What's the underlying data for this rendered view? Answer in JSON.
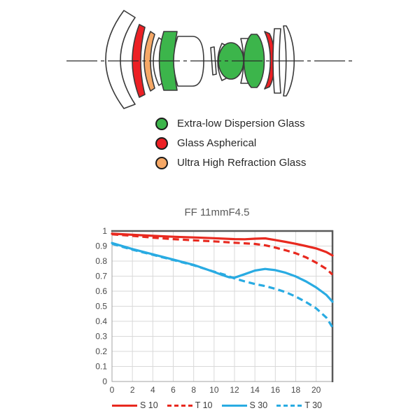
{
  "lens": {
    "colors": {
      "ed_glass": "#3CB54B",
      "aspherical": "#EC2024",
      "uhr_glass": "#F6A866",
      "outline": "#3a3a3a",
      "white_glass": "#ffffff"
    },
    "legend": [
      {
        "label": "Extra-low Dispersion Glass",
        "color": "#3CB54B"
      },
      {
        "label": "Glass Aspherical",
        "color": "#EC2024"
      },
      {
        "label": "Ultra High Refraction Glass",
        "color": "#F6A866"
      }
    ]
  },
  "chart_data": {
    "type": "line",
    "title": "FF 11mmF4.5",
    "xlabel": "",
    "ylabel": "",
    "xlim": [
      0,
      21.6
    ],
    "ylim": [
      0,
      1
    ],
    "x_ticks": [
      0,
      2,
      4,
      6,
      8,
      10,
      12,
      14,
      16,
      18,
      20
    ],
    "y_ticks": [
      "1",
      "0.9",
      "0.8",
      "0.7",
      "0.6",
      "0.5",
      "0.4",
      "0.3",
      "0.2",
      "0.1",
      "0"
    ],
    "grid": true,
    "grid_color": "#d9d9d9",
    "frame_color": "#a3a3a3",
    "dark_border_color": "#595959",
    "legend_position": "bottom",
    "series": [
      {
        "name": "S 10",
        "color": "#E8291F",
        "dash": "solid",
        "points": [
          [
            0,
            0.982
          ],
          [
            2,
            0.975
          ],
          [
            4,
            0.968
          ],
          [
            6,
            0.962
          ],
          [
            8,
            0.957
          ],
          [
            10,
            0.952
          ],
          [
            12,
            0.946
          ],
          [
            13,
            0.945
          ],
          [
            14,
            0.949
          ],
          [
            15,
            0.951
          ],
          [
            16,
            0.94
          ],
          [
            17,
            0.928
          ],
          [
            18,
            0.915
          ],
          [
            19,
            0.9
          ],
          [
            20,
            0.884
          ],
          [
            21,
            0.86
          ],
          [
            21.6,
            0.837
          ]
        ]
      },
      {
        "name": "T 10",
        "color": "#E8291F",
        "dash": "dashed",
        "points": [
          [
            0,
            0.978
          ],
          [
            2,
            0.968
          ],
          [
            4,
            0.956
          ],
          [
            6,
            0.946
          ],
          [
            8,
            0.938
          ],
          [
            10,
            0.931
          ],
          [
            12,
            0.922
          ],
          [
            13,
            0.918
          ],
          [
            14,
            0.914
          ],
          [
            15,
            0.905
          ],
          [
            16,
            0.89
          ],
          [
            17,
            0.872
          ],
          [
            18,
            0.852
          ],
          [
            19,
            0.825
          ],
          [
            20,
            0.79
          ],
          [
            21,
            0.748
          ],
          [
            21.6,
            0.71
          ]
        ]
      },
      {
        "name": "S 30",
        "color": "#29ABE2",
        "dash": "solid",
        "points": [
          [
            0,
            0.92
          ],
          [
            2,
            0.88
          ],
          [
            4,
            0.845
          ],
          [
            6,
            0.81
          ],
          [
            8,
            0.775
          ],
          [
            10,
            0.728
          ],
          [
            11,
            0.703
          ],
          [
            11.5,
            0.692
          ],
          [
            12,
            0.69
          ],
          [
            13,
            0.713
          ],
          [
            14,
            0.737
          ],
          [
            15,
            0.748
          ],
          [
            16,
            0.74
          ],
          [
            17,
            0.723
          ],
          [
            18,
            0.698
          ],
          [
            19,
            0.665
          ],
          [
            20,
            0.625
          ],
          [
            21,
            0.575
          ],
          [
            21.6,
            0.53
          ]
        ]
      },
      {
        "name": "T 30",
        "color": "#29ABE2",
        "dash": "dashed",
        "points": [
          [
            0,
            0.915
          ],
          [
            2,
            0.876
          ],
          [
            4,
            0.842
          ],
          [
            6,
            0.807
          ],
          [
            8,
            0.772
          ],
          [
            10,
            0.73
          ],
          [
            11,
            0.71
          ],
          [
            12,
            0.685
          ],
          [
            13,
            0.665
          ],
          [
            14,
            0.648
          ],
          [
            15,
            0.634
          ],
          [
            16,
            0.616
          ],
          [
            17,
            0.594
          ],
          [
            18,
            0.564
          ],
          [
            19,
            0.528
          ],
          [
            20,
            0.486
          ],
          [
            21,
            0.424
          ],
          [
            21.6,
            0.36
          ]
        ]
      }
    ]
  }
}
